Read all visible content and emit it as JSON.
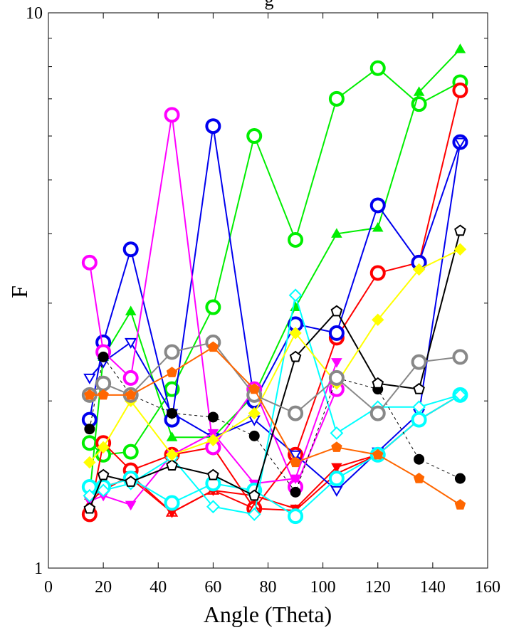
{
  "chart_data": {
    "type": "line",
    "title": "g",
    "xlabel": "Angle (Theta)",
    "ylabel": "F",
    "xlim": [
      0,
      160
    ],
    "ylim": [
      1,
      10
    ],
    "yscale": "log",
    "grid": false,
    "legend": "none",
    "xticks": [
      0,
      20,
      40,
      60,
      80,
      100,
      120,
      140,
      160
    ],
    "yticks": [
      1,
      10
    ],
    "series": [
      {
        "color": "#00ee00",
        "marker": "open-circle",
        "x": [
          15,
          20,
          30,
          45,
          60,
          75,
          90,
          105,
          120,
          135,
          150
        ],
        "y": [
          1.68,
          1.6,
          1.62,
          2.1,
          2.95,
          6.0,
          3.9,
          7.0,
          7.95,
          6.85,
          7.5
        ]
      },
      {
        "color": "#00ee00",
        "marker": "filled-triangle-up",
        "x": [
          15,
          20,
          30,
          45,
          60,
          75,
          90,
          105,
          120,
          135,
          150
        ],
        "y": [
          1.35,
          2.4,
          2.9,
          1.72,
          1.72,
          2.05,
          2.95,
          4.0,
          4.1,
          7.2,
          8.6
        ]
      },
      {
        "color": "#ff0000",
        "marker": "open-circle",
        "x": [
          15,
          20,
          30,
          45,
          60,
          75,
          90,
          105,
          120,
          135,
          150
        ],
        "y": [
          1.25,
          1.68,
          1.5,
          1.6,
          1.65,
          1.28,
          1.6,
          2.6,
          3.4,
          3.55,
          7.25
        ]
      },
      {
        "color": "#ff0000",
        "marker": "open-triangle-up",
        "x": [
          15,
          20,
          30,
          45,
          60,
          75,
          90,
          105,
          120,
          135,
          150
        ],
        "y": [
          1.3,
          1.4,
          1.45,
          1.26,
          1.38,
          1.28,
          1.27,
          1.48,
          1.6,
          1.85,
          2.05
        ]
      },
      {
        "color": "#ff0000",
        "marker": "filled-triangle-down",
        "x": [
          15,
          20,
          30,
          45,
          60,
          75,
          90,
          105,
          120,
          135,
          150
        ],
        "y": [
          1.32,
          1.38,
          1.47,
          1.26,
          1.38,
          1.35,
          1.28,
          1.52,
          1.6,
          1.85,
          2.05
        ]
      },
      {
        "color": "#0000ee",
        "marker": "open-circle",
        "x": [
          15,
          20,
          30,
          45,
          60,
          75,
          90,
          105,
          120,
          135,
          150
        ],
        "y": [
          1.85,
          2.55,
          3.75,
          1.85,
          6.25,
          2.0,
          2.75,
          2.65,
          4.5,
          3.55,
          5.85
        ]
      },
      {
        "color": "#0000ee",
        "marker": "open-triangle-down",
        "x": [
          15,
          20,
          30,
          45,
          60,
          75,
          90,
          105,
          120,
          135,
          150
        ],
        "y": [
          2.2,
          2.35,
          2.55,
          1.9,
          1.72,
          1.85,
          1.6,
          1.38,
          1.62,
          1.9,
          5.85
        ]
      },
      {
        "color": "#ff00ff",
        "marker": "open-circle",
        "x": [
          15,
          20,
          30,
          45,
          60,
          75,
          90,
          105
        ],
        "y": [
          3.55,
          2.45,
          2.2,
          6.55,
          1.65,
          2.1,
          1.4,
          2.1
        ]
      },
      {
        "color": "#ff00ff",
        "marker": "filled-triangle-down",
        "x": [
          15,
          20,
          30,
          45,
          60,
          75,
          90,
          105
        ],
        "y": [
          1.32,
          1.35,
          1.3,
          1.6,
          1.75,
          1.42,
          1.45,
          2.35
        ]
      },
      {
        "color": "#00ffff",
        "marker": "open-circle",
        "x": [
          15,
          20,
          30,
          45,
          60,
          75,
          90,
          105,
          120,
          135,
          150
        ],
        "y": [
          1.4,
          1.4,
          1.45,
          1.31,
          1.42,
          1.38,
          1.24,
          1.45,
          1.6,
          1.85,
          2.05
        ]
      },
      {
        "color": "#00ffff",
        "marker": "open-diamond",
        "x": [
          15,
          20,
          30,
          45,
          60,
          75,
          90,
          105,
          120,
          135,
          150
        ],
        "y": [
          1.35,
          1.38,
          1.42,
          1.58,
          1.29,
          1.25,
          3.1,
          1.75,
          1.95,
          1.95,
          2.05
        ]
      },
      {
        "color": "#000000",
        "marker": "filled-circle",
        "x": [
          15,
          20,
          30,
          45,
          60,
          75,
          90,
          105,
          120,
          135,
          150
        ],
        "y": [
          1.78,
          2.4,
          2.05,
          1.9,
          1.87,
          1.73,
          1.37,
          2.2,
          2.1,
          1.57,
          1.45
        ],
        "dashed": true
      },
      {
        "color": "#000000",
        "marker": "open-pentagon",
        "x": [
          15,
          20,
          30,
          45,
          60,
          75,
          90,
          105,
          120,
          135,
          150
        ],
        "y": [
          1.28,
          1.47,
          1.43,
          1.53,
          1.47,
          1.35,
          2.4,
          2.9,
          2.15,
          2.1,
          4.05
        ]
      },
      {
        "color": "#ffff00",
        "marker": "filled-diamond",
        "x": [
          15,
          20,
          30,
          45,
          60,
          75,
          90,
          105,
          120,
          135,
          150
        ],
        "y": [
          1.55,
          1.65,
          2.0,
          1.6,
          1.7,
          1.9,
          2.65,
          2.15,
          2.8,
          3.45,
          3.75
        ]
      },
      {
        "color": "#888888",
        "marker": "open-circle",
        "x": [
          15,
          20,
          30,
          45,
          60,
          75,
          90,
          105,
          120,
          135,
          150
        ],
        "y": [
          2.05,
          2.15,
          2.05,
          2.45,
          2.55,
          2.05,
          1.9,
          2.2,
          1.9,
          2.35,
          2.4
        ]
      },
      {
        "color": "#ff6600",
        "marker": "filled-pentagon",
        "x": [
          15,
          20,
          30,
          45,
          60,
          75,
          90,
          105,
          120,
          135,
          150
        ],
        "y": [
          2.05,
          2.05,
          2.05,
          2.25,
          2.5,
          2.1,
          1.55,
          1.65,
          1.6,
          1.45,
          1.3
        ]
      }
    ]
  }
}
